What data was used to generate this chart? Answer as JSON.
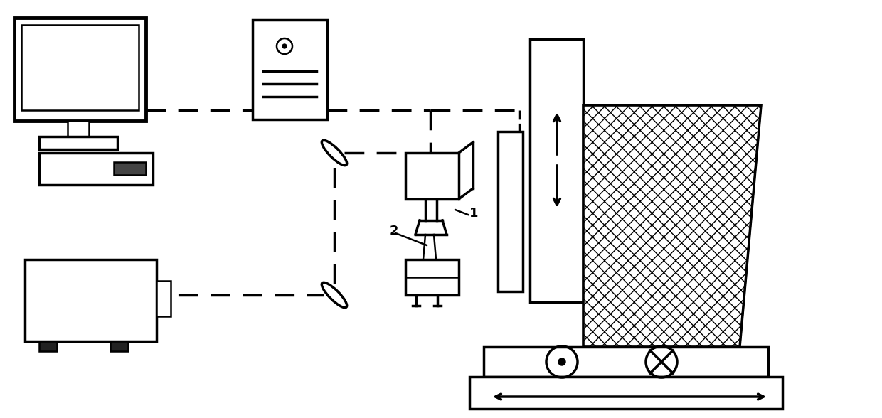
{
  "bg_color": "#ffffff",
  "fig_width": 12.4,
  "fig_height": 5.88,
  "dpi": 100
}
